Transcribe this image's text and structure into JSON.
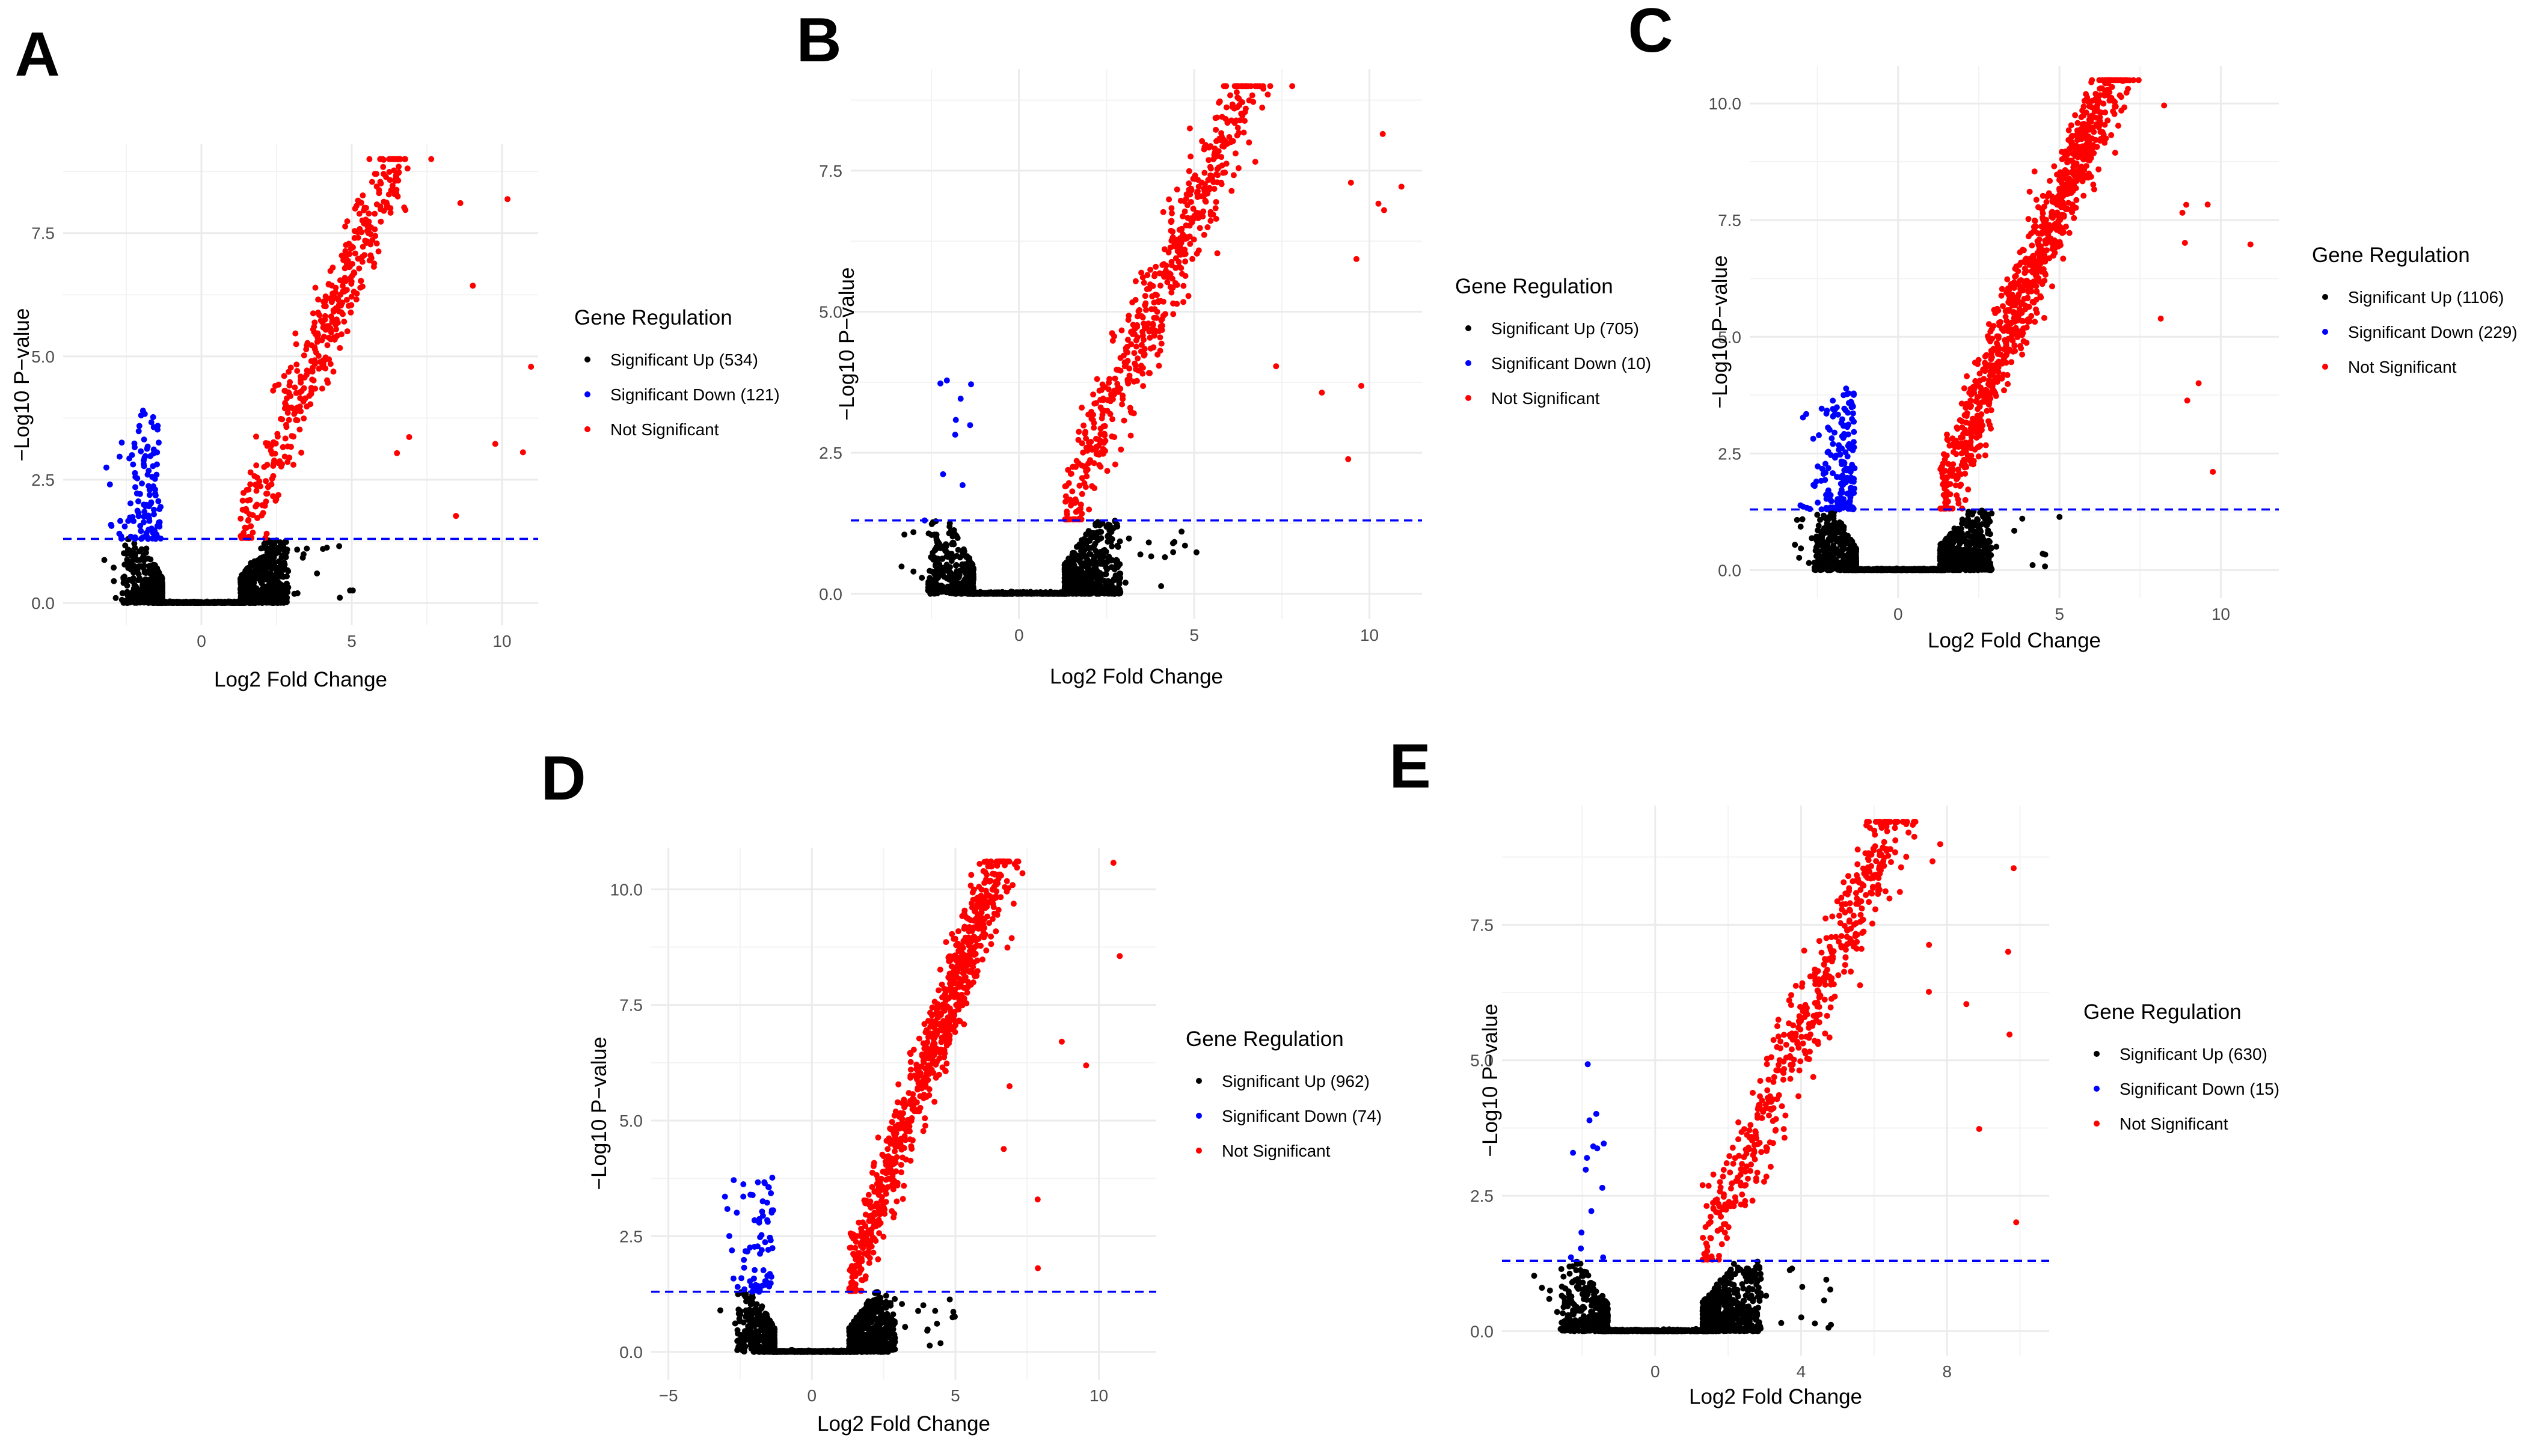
{
  "colors": {
    "sig_up": "#000000",
    "sig_down": "#0000ff",
    "not_sig": "#ff0000",
    "threshold_line": "#0000ff",
    "grid": "#ebebeb",
    "background": "#ffffff"
  },
  "chart_data": [
    {
      "id": "A",
      "type": "scatter",
      "panel_label": "A",
      "xlabel": "Log2 Fold Change",
      "ylabel": "−Log10 P−value",
      "xlim": [
        -4.6,
        11.2
      ],
      "ylim": [
        -0.45,
        9.3
      ],
      "x_ticks": [
        0,
        5,
        10
      ],
      "x_tick_labels": [
        "0",
        "5",
        "10"
      ],
      "y_ticks": [
        0,
        2.5,
        5,
        7.5
      ],
      "y_tick_labels": [
        "0.0",
        "2.5",
        "5.0",
        "7.5"
      ],
      "threshold": 1.3,
      "legend": {
        "title": "Gene Regulation",
        "entries": [
          "Significant Up (534)",
          "Significant Down (121)",
          "Not Significant"
        ]
      },
      "counts": {
        "up": 534,
        "down": 121
      },
      "params": {
        "leftMin": -3.3,
        "rightMax": 11,
        "sigScale": 1.0,
        "dotR": 5
      }
    },
    {
      "id": "B",
      "type": "scatter",
      "panel_label": "B",
      "xlabel": "Log2 Fold Change",
      "ylabel": "−Log10 P−value",
      "xlim": [
        -4.8,
        11.5
      ],
      "ylim": [
        -0.45,
        9.3
      ],
      "x_ticks": [
        0,
        5,
        10
      ],
      "x_tick_labels": [
        "0",
        "5",
        "10"
      ],
      "y_ticks": [
        0,
        2.5,
        5,
        7.5
      ],
      "y_tick_labels": [
        "0.0",
        "2.5",
        "5.0",
        "7.5"
      ],
      "threshold": 1.3,
      "legend": {
        "title": "Gene Regulation",
        "entries": [
          "Significant Up (705)",
          "Significant Down (10)",
          "Not Significant"
        ]
      },
      "counts": {
        "up": 705,
        "down": 10
      },
      "params": {
        "leftMin": -3.4,
        "rightMax": 11,
        "sigScale": 1.0,
        "dotR": 5
      }
    },
    {
      "id": "C",
      "type": "scatter",
      "panel_label": "C",
      "xlabel": "Log2 Fold Change",
      "ylabel": "−Log10 P−value",
      "xlim": [
        -4.6,
        11.8
      ],
      "ylim": [
        -0.6,
        10.8
      ],
      "x_ticks": [
        0,
        5,
        10
      ],
      "x_tick_labels": [
        "0",
        "5",
        "10"
      ],
      "y_ticks": [
        0,
        2.5,
        5,
        7.5,
        10
      ],
      "y_tick_labels": [
        "0.0",
        "2.5",
        "5.0",
        "7.5",
        "10.0"
      ],
      "threshold": 1.3,
      "legend": {
        "title": "Gene Regulation",
        "entries": [
          "Significant Up (1106)",
          "Significant Down (229)",
          "Not Significant"
        ]
      },
      "counts": {
        "up": 1106,
        "down": 229
      },
      "params": {
        "leftMin": -3.2,
        "rightMax": 11,
        "sigScale": 1.1,
        "dotR": 5
      }
    },
    {
      "id": "D",
      "type": "scatter",
      "panel_label": "D",
      "xlabel": "Log2 Fold Change",
      "ylabel": "−Log10 P−value",
      "xlim": [
        -5.6,
        12.0
      ],
      "ylim": [
        -0.6,
        10.9
      ],
      "x_ticks": [
        -5,
        0,
        5,
        10
      ],
      "x_tick_labels": [
        "−5",
        "0",
        "5",
        "10"
      ],
      "y_ticks": [
        0,
        2.5,
        5,
        7.5,
        10
      ],
      "y_tick_labels": [
        "0.0",
        "2.5",
        "5.0",
        "7.5",
        "10.0"
      ],
      "threshold": 1.3,
      "legend": {
        "title": "Gene Regulation",
        "entries": [
          "Significant Up (962)",
          "Significant Down (74)",
          "Not Significant"
        ]
      },
      "counts": {
        "up": 962,
        "down": 74
      },
      "params": {
        "leftMin": -3.2,
        "rightMax": 11,
        "sigScale": 1.1,
        "dotR": 5
      }
    },
    {
      "id": "E",
      "type": "scatter",
      "panel_label": "E",
      "xlabel": "Log2 Fold Change",
      "ylabel": "−Log10 P−value",
      "xlim": [
        -4.2,
        10.8
      ],
      "ylim": [
        -0.45,
        9.7
      ],
      "x_ticks": [
        0,
        4,
        8
      ],
      "x_tick_labels": [
        "0",
        "4",
        "8"
      ],
      "y_ticks": [
        0,
        2.5,
        5,
        7.5
      ],
      "y_tick_labels": [
        "0.0",
        "2.5",
        "5.0",
        "7.5"
      ],
      "threshold": 1.3,
      "legend": {
        "title": "Gene Regulation",
        "entries": [
          "Significant Up (630)",
          "Significant Down (15)",
          "Not Significant"
        ]
      },
      "counts": {
        "up": 630,
        "down": 15
      },
      "params": {
        "leftMin": -3.4,
        "rightMax": 10.5,
        "sigScale": 1.0,
        "dotR": 5
      }
    }
  ]
}
